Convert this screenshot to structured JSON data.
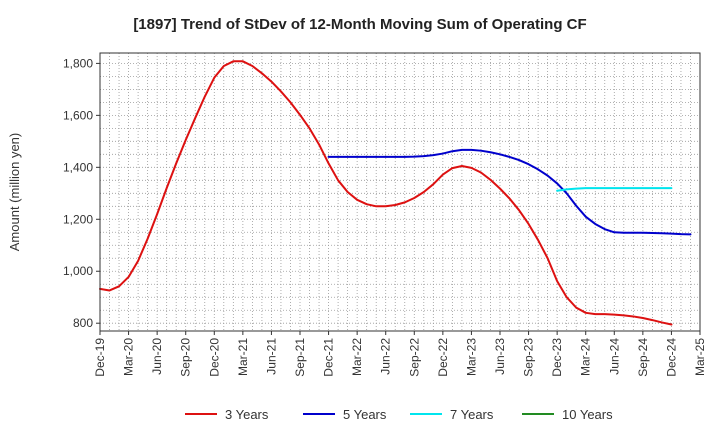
{
  "chart_data": {
    "type": "line",
    "title": "[1897]  Trend of StDev of 12-Month Moving Sum of Operating CF",
    "ylabel": "Amount (million yen)",
    "xlabel": "",
    "x_ticks": [
      "Dec-19",
      "Mar-20",
      "Jun-20",
      "Sep-20",
      "Dec-20",
      "Mar-21",
      "Jun-21",
      "Sep-21",
      "Dec-21",
      "Mar-22",
      "Jun-22",
      "Sep-22",
      "Dec-22",
      "Mar-23",
      "Jun-23",
      "Sep-23",
      "Dec-23",
      "Mar-24",
      "Jun-24",
      "Sep-24",
      "Dec-24",
      "Mar-25"
    ],
    "y_ticks": [
      800,
      1000,
      1200,
      1400,
      1600,
      1800
    ],
    "y_tick_labels": [
      "800",
      "1,000",
      "1,200",
      "1,400",
      "1,600",
      "1,800"
    ],
    "ylim": [
      770,
      1840
    ],
    "grid": true,
    "legend_position": "bottom",
    "series": [
      {
        "name": "3 Years",
        "color": "#dd1111",
        "start_month_index": 0,
        "values": [
          932,
          926,
          942,
          978,
          1040,
          1125,
          1220,
          1320,
          1415,
          1505,
          1590,
          1672,
          1745,
          1790,
          1808,
          1808,
          1790,
          1762,
          1730,
          1692,
          1650,
          1602,
          1550,
          1488,
          1415,
          1350,
          1305,
          1275,
          1258,
          1250,
          1250,
          1255,
          1265,
          1282,
          1305,
          1335,
          1372,
          1397,
          1405,
          1398,
          1380,
          1352,
          1318,
          1280,
          1235,
          1182,
          1120,
          1050,
          962,
          900,
          860,
          840,
          835,
          835,
          833,
          830,
          826,
          820,
          812,
          803,
          795
        ]
      },
      {
        "name": "5 Years",
        "color": "#0000cc",
        "start_month_index": 24,
        "values": [
          1440,
          1440,
          1440,
          1440,
          1440,
          1440,
          1440,
          1440,
          1440,
          1441,
          1443,
          1447,
          1453,
          1462,
          1467,
          1467,
          1464,
          1458,
          1450,
          1440,
          1428,
          1412,
          1392,
          1368,
          1338,
          1300,
          1252,
          1210,
          1182,
          1162,
          1150,
          1148,
          1148,
          1148,
          1147,
          1146,
          1145,
          1143,
          1142
        ]
      },
      {
        "name": "7 Years",
        "color": "#00e5ee",
        "start_month_index": 48,
        "values": [
          1310,
          1315,
          1318,
          1320,
          1320,
          1320,
          1320,
          1320,
          1320,
          1320,
          1320,
          1320,
          1320
        ]
      },
      {
        "name": "10 Years",
        "color": "#228b22",
        "start_month_index": 60,
        "values": []
      }
    ]
  }
}
